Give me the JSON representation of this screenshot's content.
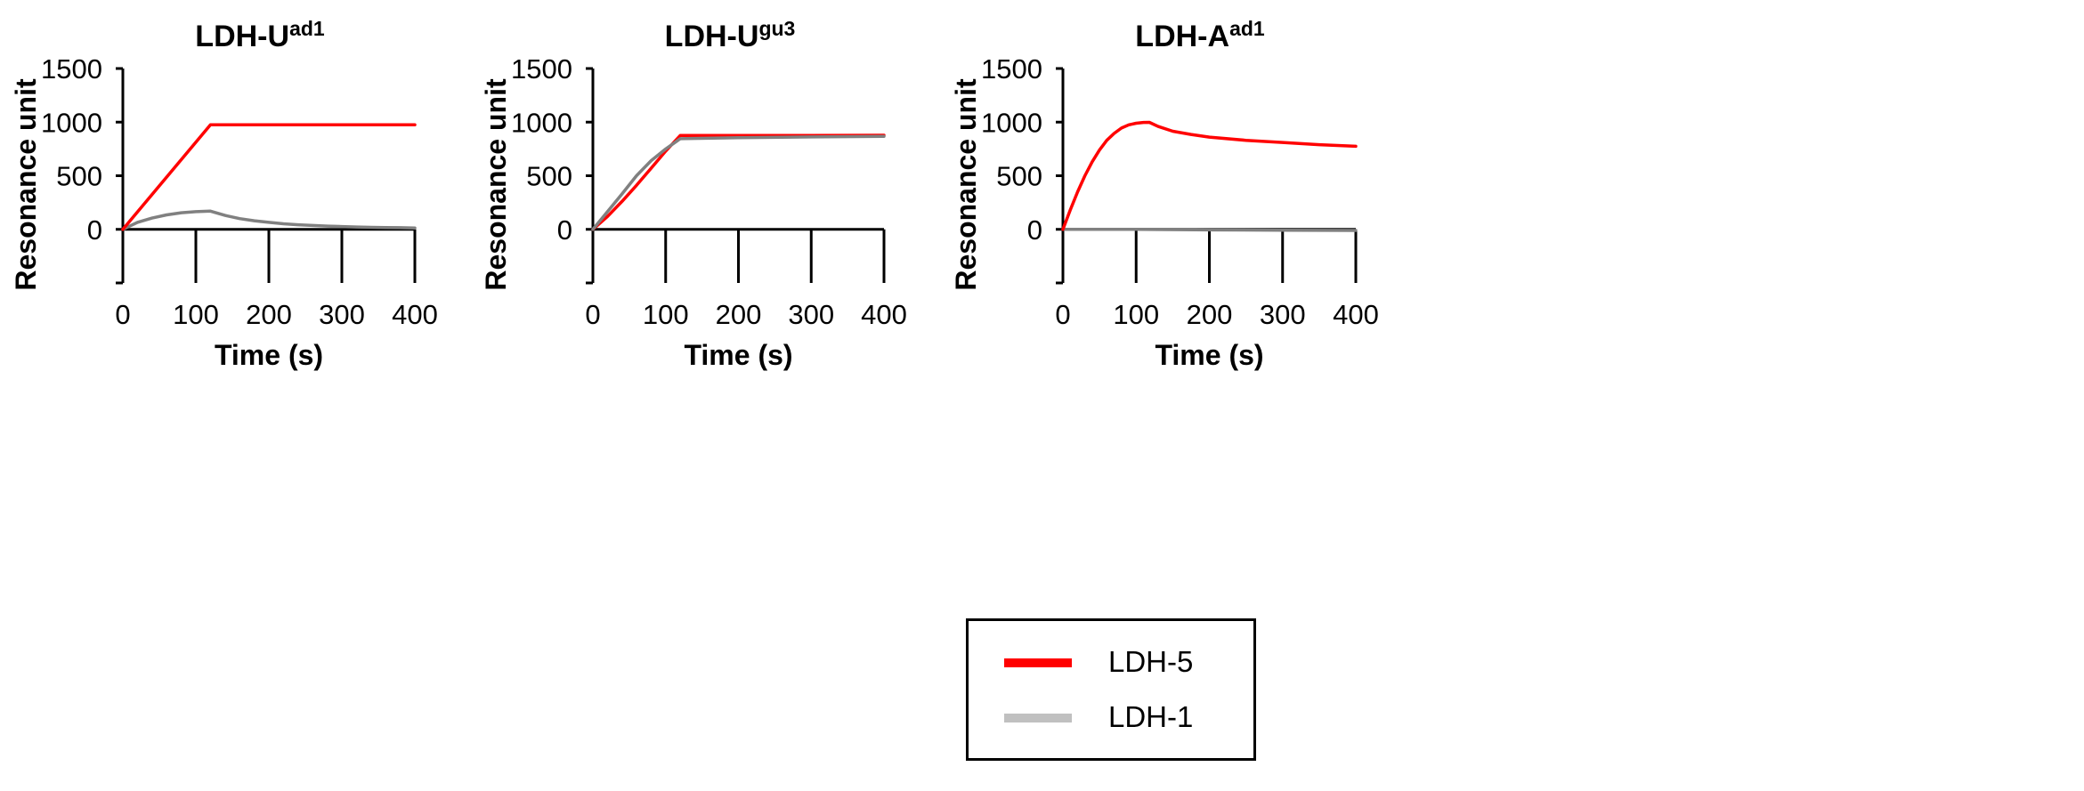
{
  "chart_data": [
    {
      "type": "line",
      "title": {
        "base": "LDH-U",
        "sup": "ad1"
      },
      "xlabel": "Time (s)",
      "ylabel": "Resonance unit",
      "xlim": [
        0,
        400
      ],
      "ylim": [
        -500,
        1500
      ],
      "xticks": [
        0,
        100,
        200,
        300,
        400
      ],
      "yticks": [
        0,
        500,
        1000,
        1500
      ],
      "x_tick_labels": [
        "0",
        "100",
        "200",
        "300",
        "400"
      ],
      "y_tick_labels": [
        "0",
        "500",
        "1000",
        "1500"
      ],
      "series": [
        {
          "name": "LDH-1",
          "color": "#808080",
          "x": [
            0,
            20,
            40,
            60,
            80,
            100,
            120,
            140,
            160,
            180,
            200,
            220,
            240,
            260,
            280,
            300,
            320,
            340,
            360,
            380,
            400
          ],
          "y": [
            0,
            65,
            105,
            135,
            155,
            165,
            170,
            130,
            100,
            80,
            65,
            52,
            43,
            36,
            30,
            26,
            22,
            19,
            17,
            15,
            13
          ]
        },
        {
          "name": "LDH-5",
          "color": "#ff0000",
          "x": [
            0,
            120,
            200,
            300,
            400
          ],
          "y": [
            0,
            975,
            975,
            975,
            975
          ]
        }
      ]
    },
    {
      "type": "line",
      "title": {
        "base": "LDH-U",
        "sup": "gu3"
      },
      "xlabel": "Time (s)",
      "ylabel": "Resonance unit",
      "xlim": [
        0,
        400
      ],
      "ylim": [
        -500,
        1500
      ],
      "xticks": [
        0,
        100,
        200,
        300,
        400
      ],
      "yticks": [
        0,
        500,
        1000,
        1500
      ],
      "x_tick_labels": [
        "0",
        "100",
        "200",
        "300",
        "400"
      ],
      "y_tick_labels": [
        "0",
        "500",
        "1000",
        "1500"
      ],
      "series": [
        {
          "name": "LDH-5",
          "color": "#ff0000",
          "x": [
            0,
            20,
            40,
            60,
            80,
            100,
            120,
            200,
            300,
            400
          ],
          "y": [
            0,
            120,
            260,
            410,
            570,
            730,
            875,
            875,
            875,
            878
          ]
        },
        {
          "name": "LDH-1",
          "color": "#808080",
          "x": [
            0,
            20,
            40,
            60,
            80,
            100,
            120,
            200,
            300,
            400
          ],
          "y": [
            0,
            165,
            330,
            500,
            640,
            750,
            845,
            855,
            862,
            868
          ]
        }
      ]
    },
    {
      "type": "line",
      "title": {
        "base": "LDH-A",
        "sup": "ad1"
      },
      "xlabel": "Time (s)",
      "ylabel": "Resonance unit",
      "xlim": [
        0,
        400
      ],
      "ylim": [
        -500,
        1500
      ],
      "xticks": [
        0,
        100,
        200,
        300,
        400
      ],
      "yticks": [
        0,
        500,
        1000,
        1500
      ],
      "x_tick_labels": [
        "0",
        "100",
        "200",
        "300",
        "400"
      ],
      "y_tick_labels": [
        "0",
        "500",
        "1000",
        "1500"
      ],
      "series": [
        {
          "name": "LDH-1",
          "color": "#808080",
          "x": [
            0,
            100,
            200,
            300,
            400
          ],
          "y": [
            0,
            0,
            -5,
            -8,
            -10
          ]
        },
        {
          "name": "LDH-5",
          "color": "#ff0000",
          "x": [
            0,
            10,
            20,
            30,
            40,
            50,
            60,
            70,
            80,
            90,
            100,
            110,
            118,
            130,
            150,
            175,
            200,
            250,
            300,
            350,
            400
          ],
          "y": [
            0,
            180,
            350,
            500,
            630,
            740,
            830,
            895,
            945,
            975,
            990,
            997,
            998,
            960,
            915,
            885,
            860,
            830,
            810,
            790,
            775
          ]
        }
      ]
    }
  ],
  "legend": {
    "items": [
      {
        "label": "LDH-5",
        "color": "#ff0000"
      },
      {
        "label": "LDH-1",
        "color": "#c0c0c0"
      }
    ]
  }
}
